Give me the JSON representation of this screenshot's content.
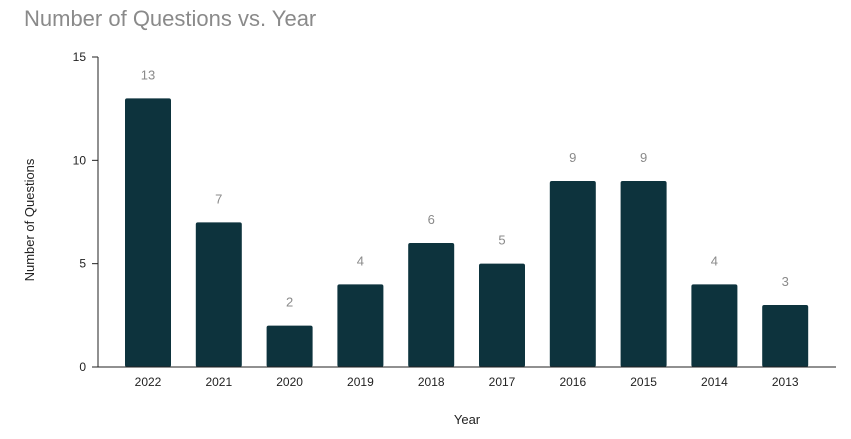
{
  "chart_data": {
    "type": "bar",
    "title": "Number of Questions vs. Year",
    "xlabel": "Year",
    "ylabel": "Number of Questions",
    "categories": [
      "2022",
      "2021",
      "2020",
      "2019",
      "2018",
      "2017",
      "2016",
      "2015",
      "2014",
      "2013"
    ],
    "values": [
      13,
      7,
      2,
      4,
      6,
      5,
      9,
      9,
      4,
      3
    ],
    "data_labels": [
      "13",
      "7",
      "2",
      "4",
      "6",
      "5",
      "9",
      "9",
      "4",
      "3"
    ],
    "ylim": [
      0,
      15
    ],
    "yticks": [
      0,
      5,
      10,
      15
    ],
    "ytick_labels": [
      "0",
      "5",
      "10",
      "15"
    ],
    "grid": false,
    "legend": "none",
    "colors": {
      "bar": "#0d333d",
      "axis": "#222222",
      "title": "#8a8a8a",
      "data_label": "#8a8a8a"
    }
  }
}
